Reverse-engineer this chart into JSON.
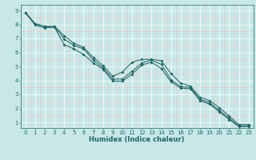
{
  "xlabel": "Humidex (Indice chaleur)",
  "bg_color": "#c8e8e8",
  "line_color": "#226666",
  "grid_white": "#ffffff",
  "grid_pink": "#e8c8c8",
  "xlim": [
    -0.5,
    23.5
  ],
  "ylim": [
    0.6,
    9.4
  ],
  "xticks": [
    0,
    1,
    2,
    3,
    4,
    5,
    6,
    7,
    8,
    9,
    10,
    11,
    12,
    13,
    14,
    15,
    16,
    17,
    18,
    19,
    20,
    21,
    22,
    23
  ],
  "yticks": [
    1,
    2,
    3,
    4,
    5,
    6,
    7,
    8,
    9
  ],
  "line1_x": [
    0,
    1,
    2,
    3,
    4,
    5,
    6,
    7,
    8,
    9,
    10,
    11,
    12,
    13,
    14,
    15,
    16,
    17,
    18,
    19,
    20,
    21,
    22,
    23
  ],
  "line1_y": [
    8.85,
    8.05,
    7.85,
    7.85,
    6.95,
    6.5,
    6.25,
    5.45,
    4.9,
    4.1,
    4.1,
    4.65,
    5.25,
    5.45,
    5.15,
    4.05,
    3.55,
    3.5,
    2.65,
    2.4,
    1.85,
    1.3,
    0.75,
    0.75
  ],
  "line2_x": [
    0,
    1,
    2,
    3,
    4,
    5,
    6,
    7,
    8,
    9,
    10,
    11,
    12,
    13,
    14,
    15,
    16,
    17,
    18,
    19,
    20,
    21,
    22,
    23
  ],
  "line2_y": [
    8.85,
    8.05,
    7.85,
    7.85,
    7.2,
    6.65,
    6.35,
    5.65,
    5.05,
    4.3,
    4.6,
    5.3,
    5.5,
    5.5,
    5.4,
    4.5,
    3.8,
    3.6,
    2.8,
    2.55,
    2.05,
    1.45,
    0.85,
    0.85
  ],
  "line3_x": [
    0,
    1,
    2,
    3,
    4,
    5,
    6,
    7,
    8,
    9,
    10,
    11,
    12,
    13,
    14,
    15,
    16,
    17,
    18,
    19,
    20,
    21,
    22,
    23
  ],
  "line3_y": [
    8.85,
    7.95,
    7.75,
    7.8,
    6.55,
    6.25,
    5.85,
    5.25,
    4.8,
    3.95,
    3.95,
    4.45,
    5.1,
    5.3,
    4.85,
    3.9,
    3.45,
    3.4,
    2.55,
    2.3,
    1.75,
    1.2,
    0.7,
    0.7
  ]
}
